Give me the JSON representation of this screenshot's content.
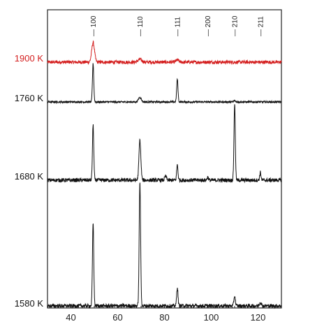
{
  "chart_data": {
    "type": "line",
    "title": "",
    "xlabel": "",
    "ylabel": "",
    "xlim": [
      30,
      130
    ],
    "x_ticks": [
      40,
      60,
      80,
      100,
      120
    ],
    "grid": false,
    "peak_labels": [
      {
        "label": "100",
        "x": 49.5
      },
      {
        "label": "110",
        "x": 69.5
      },
      {
        "label": "111",
        "x": 85.5
      },
      {
        "label": "200",
        "x": 98.5
      },
      {
        "label": "210",
        "x": 110.0
      },
      {
        "label": "211",
        "x": 121.0
      }
    ],
    "series": [
      {
        "name": "1900 K",
        "color": "#d42020",
        "noise": 0.05,
        "peaks": [
          {
            "x": 49.5,
            "height": 0.28,
            "width": 0.6
          },
          {
            "x": 69.5,
            "height": 0.04,
            "width": 0.8
          },
          {
            "x": 85.5,
            "height": 0.03,
            "width": 0.6
          }
        ]
      },
      {
        "name": "1760 K",
        "color": "#111111",
        "noise": 0.05,
        "peaks": [
          {
            "x": 49.5,
            "height": 1.0,
            "width": 0.28
          },
          {
            "x": 69.5,
            "height": 0.12,
            "width": 0.6
          },
          {
            "x": 85.5,
            "height": 0.6,
            "width": 0.28
          },
          {
            "x": 110.0,
            "height": 0.03,
            "width": 0.4
          }
        ]
      },
      {
        "name": "1680 K",
        "color": "#111111",
        "noise": 0.05,
        "peaks": [
          {
            "x": 49.5,
            "height": 0.72,
            "width": 0.28
          },
          {
            "x": 69.5,
            "height": 0.52,
            "width": 0.4
          },
          {
            "x": 80.5,
            "height": 0.05,
            "width": 0.4
          },
          {
            "x": 85.5,
            "height": 0.2,
            "width": 0.28
          },
          {
            "x": 98.5,
            "height": 0.04,
            "width": 0.3
          },
          {
            "x": 110.0,
            "height": 1.0,
            "width": 0.28
          },
          {
            "x": 121.0,
            "height": 0.1,
            "width": 0.28
          }
        ]
      },
      {
        "name": "1580 K",
        "color": "#111111",
        "noise": 0.03,
        "peaks": [
          {
            "x": 49.5,
            "height": 0.67,
            "width": 0.28
          },
          {
            "x": 69.5,
            "height": 1.0,
            "width": 0.3
          },
          {
            "x": 85.5,
            "height": 0.15,
            "width": 0.28
          },
          {
            "x": 110.0,
            "height": 0.08,
            "width": 0.3
          },
          {
            "x": 121.0,
            "height": 0.03,
            "width": 0.4
          }
        ]
      }
    ]
  }
}
